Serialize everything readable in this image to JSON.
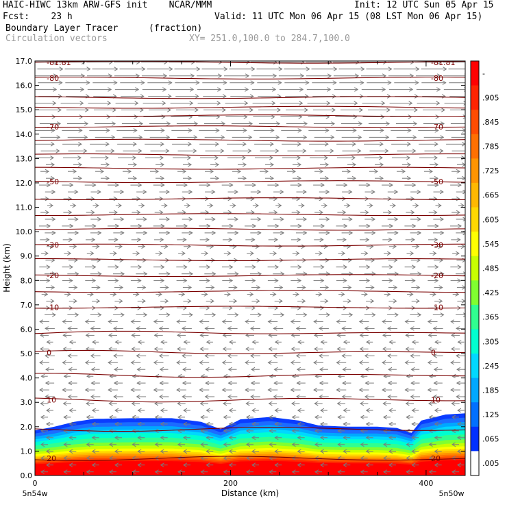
{
  "header": {
    "line1_left": "HAIC-HIWC 13km ARW-GFS init    NCAR/MMM",
    "line1_right": "Init: 12 UTC Sun 05 Apr 15",
    "line2_left": "Fcst:    23 h",
    "line2_right": "Valid: 11 UTC Mon 06 Apr 15 (08 LST Mon 06 Apr 15)",
    "field1_name": "Boundary Layer Tracer",
    "field1_units": "(fraction)",
    "field2_name": "Circulation vectors",
    "field2_extra": "XY= 251.0,100.0 to 284.7,100.0"
  },
  "chart_data": {
    "type": "heatmap",
    "xlabel": "Distance (km)",
    "ylabel": "Height (km)",
    "xlim": [
      0,
      440
    ],
    "ylim": [
      0,
      17
    ],
    "x_ticks": [
      0,
      200,
      400
    ],
    "y_ticks": [
      "0.0",
      "1.0",
      "2.0",
      "3.0",
      "4.0",
      "5.0",
      "6.0",
      "7.0",
      "8.0",
      "9.0",
      "10.0",
      "11.0",
      "12.0",
      "13.0",
      "14.0",
      "15.0",
      "16.0",
      "17.0"
    ],
    "x_endpoint_labels": {
      "left": "5n54w",
      "right": "5n50w"
    },
    "colorbar": {
      "labels": [
        "-",
        ".905",
        ".845",
        ".785",
        ".725",
        ".665",
        ".605",
        ".545",
        ".485",
        ".425",
        ".365",
        ".305",
        ".245",
        ".185",
        ".125",
        ".065",
        ".005"
      ],
      "colors_top_to_bottom": [
        "#ff0000",
        "#ff2400",
        "#ff4c00",
        "#ff7000",
        "#ff9400",
        "#ffb800",
        "#ffd800",
        "#ffff00",
        "#c8ff00",
        "#80ff30",
        "#30ff90",
        "#00ffd0",
        "#00d8ff",
        "#00a8ff",
        "#0070ff",
        "#0030ff",
        "#ffffff"
      ]
    },
    "tracer_top_km": [
      [
        0,
        1.85
      ],
      [
        20,
        2.0
      ],
      [
        40,
        2.2
      ],
      [
        60,
        2.32
      ],
      [
        100,
        2.35
      ],
      [
        140,
        2.35
      ],
      [
        170,
        2.2
      ],
      [
        190,
        1.9
      ],
      [
        210,
        2.3
      ],
      [
        240,
        2.4
      ],
      [
        270,
        2.25
      ],
      [
        290,
        2.05
      ],
      [
        320,
        2.0
      ],
      [
        350,
        2.0
      ],
      [
        370,
        1.95
      ],
      [
        385,
        1.75
      ],
      [
        395,
        2.25
      ],
      [
        420,
        2.5
      ],
      [
        440,
        2.55
      ]
    ],
    "temperature_contours": [
      {
        "label": "-81.81",
        "km": 16.95
      },
      {
        "label": "-80",
        "km": 16.3
      },
      {
        "label": "",
        "km": 15.5
      },
      {
        "label": "",
        "km": 15.1
      },
      {
        "label": "",
        "km": 14.75
      },
      {
        "label": "-70",
        "km": 14.3
      },
      {
        "label": "",
        "km": 13.75
      },
      {
        "label": "",
        "km": 13.15
      },
      {
        "label": "",
        "km": 12.6
      },
      {
        "label": "-50",
        "km": 12.05
      },
      {
        "label": "",
        "km": 11.35
      },
      {
        "label": "",
        "km": 10.7
      },
      {
        "label": "",
        "km": 10.1
      },
      {
        "label": "-30",
        "km": 9.45
      },
      {
        "label": "",
        "km": 8.85
      },
      {
        "label": "-20",
        "km": 8.2
      },
      {
        "label": "",
        "km": 7.55
      },
      {
        "label": "-10",
        "km": 6.9
      },
      {
        "label": "",
        "km": 5.85
      },
      {
        "label": "0",
        "km": 5.05
      },
      {
        "label": "",
        "km": 4.1
      },
      {
        "label": "10",
        "km": 3.1
      },
      {
        "label": "",
        "km": 1.9
      },
      {
        "label": "20",
        "km": 0.7
      }
    ]
  }
}
